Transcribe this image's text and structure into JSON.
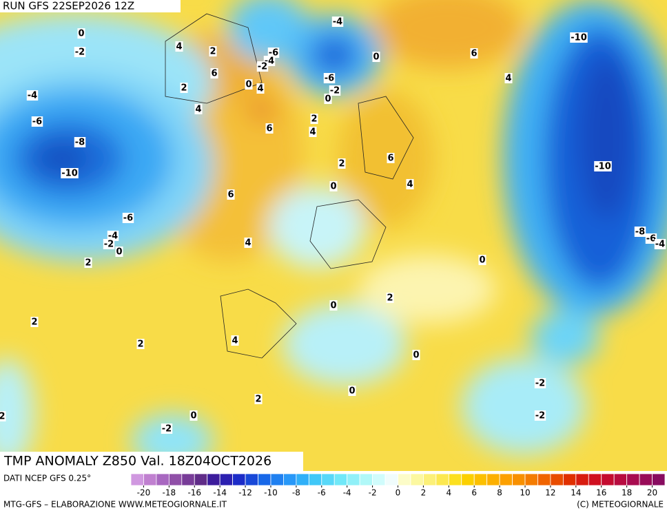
{
  "header": {
    "run": "RUN GFS 22SEP2026 12Z",
    "title": "TMP ANOMALY Z850 Val. 18Z04OCT2026",
    "source": "DATI NCEP GFS 0.25°"
  },
  "map": {
    "contour_labels": [
      0,
      -2,
      4,
      2,
      -6,
      -4,
      -2,
      6,
      0,
      4,
      2,
      -4,
      4,
      6,
      2,
      4,
      -6,
      -8,
      -10,
      2,
      0,
      6,
      4,
      6,
      -6,
      -4,
      -2,
      0,
      4,
      2,
      0,
      2,
      0,
      2,
      2,
      4,
      0,
      0,
      2,
      -2,
      -2,
      0,
      -2,
      2,
      -4,
      -6,
      -2,
      0,
      0,
      6,
      4,
      -10,
      -10,
      -8,
      -6,
      -4
    ]
  },
  "colorbar": {
    "lim": [
      -21,
      21
    ],
    "ticks": [
      -20,
      -18,
      -16,
      -14,
      -12,
      -10,
      -8,
      -6,
      -4,
      -2,
      0,
      2,
      4,
      6,
      8,
      10,
      12,
      14,
      16,
      18,
      20
    ],
    "colors": [
      "#d098e0",
      "#c080d0",
      "#a868c0",
      "#9050a8",
      "#783c98",
      "#602c88",
      "#3c1c9c",
      "#2c20b0",
      "#1c2cc8",
      "#1848d8",
      "#1868e8",
      "#2080f0",
      "#2898f8",
      "#30b0f8",
      "#40c8f8",
      "#58d8f8",
      "#70e8f8",
      "#90f0f8",
      "#b0f8f8",
      "#d0fcfc",
      "#f0fcfc",
      "#fcfcc8",
      "#fcf8a0",
      "#fcf078",
      "#fce850",
      "#fce020",
      "#fcd000",
      "#fcc000",
      "#fcb000",
      "#fca000",
      "#f89000",
      "#f47c00",
      "#f06400",
      "#e84c00",
      "#e03000",
      "#d81c10",
      "#d01020",
      "#c40c30",
      "#b80c40",
      "#a80c50",
      "#980c58",
      "#880c60"
    ]
  },
  "footer": {
    "left": "MTG-GFS – ELABORAZIONE WWW.METEOGIORNALE.IT",
    "right": "(C) METEOGIORNALE"
  }
}
